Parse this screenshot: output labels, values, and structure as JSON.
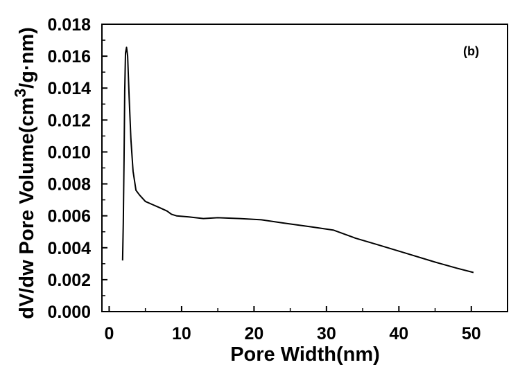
{
  "chart_data": {
    "type": "line",
    "panel_label": "(b)",
    "xlabel": "Pore Width(nm)",
    "ylabel_main": "dV/dw Pore Volume(cm",
    "ylabel_sup": "3",
    "ylabel_tail": "/g·nm)",
    "xlim": [
      -1,
      55
    ],
    "ylim": [
      0,
      0.018
    ],
    "xticks": [
      0,
      10,
      20,
      30,
      40,
      50
    ],
    "xtick_labels": [
      "0",
      "10",
      "20",
      "30",
      "40",
      "50"
    ],
    "yticks": [
      0,
      0.002,
      0.004,
      0.006,
      0.008,
      0.01,
      0.012,
      0.014,
      0.016,
      0.018
    ],
    "ytick_labels": [
      "0.000",
      "0.002",
      "0.004",
      "0.006",
      "0.008",
      "0.010",
      "0.012",
      "0.014",
      "0.016",
      "0.018"
    ],
    "grid": false,
    "series": [
      {
        "color": "#000000",
        "x": [
          1.85,
          1.95,
          2.05,
          2.15,
          2.25,
          2.4,
          2.55,
          2.75,
          3.0,
          3.3,
          3.7,
          4.2,
          4.6,
          5.0,
          6.0,
          7.0,
          8.0,
          8.6,
          9.3,
          11,
          13,
          15,
          18,
          21,
          24,
          28,
          31,
          34,
          37,
          41,
          45,
          48,
          50.3
        ],
        "y": [
          0.0032,
          0.0055,
          0.0095,
          0.0138,
          0.0162,
          0.01655,
          0.016,
          0.0135,
          0.0108,
          0.0088,
          0.0076,
          0.0073,
          0.0071,
          0.0069,
          0.0067,
          0.0065,
          0.0063,
          0.0061,
          0.006,
          0.00593,
          0.00583,
          0.00588,
          0.00583,
          0.00575,
          0.00555,
          0.0053,
          0.0051,
          0.0046,
          0.0042,
          0.00365,
          0.0031,
          0.00272,
          0.00245
        ]
      }
    ]
  }
}
